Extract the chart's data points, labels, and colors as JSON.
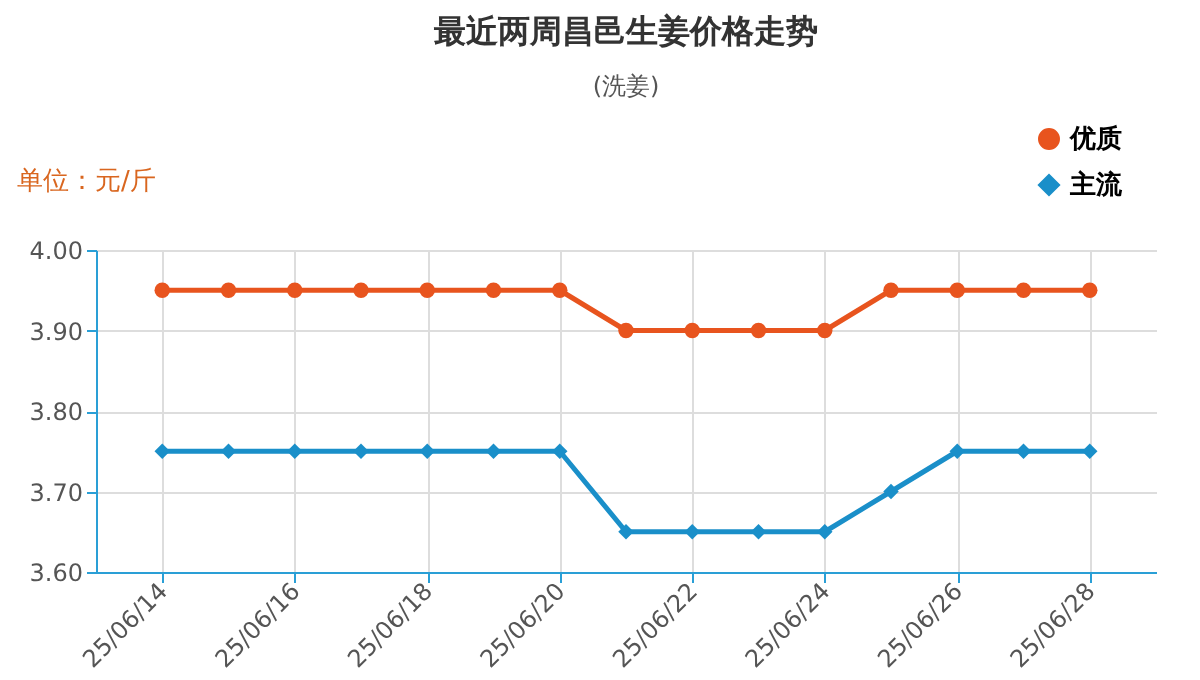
{
  "chart_data": {
    "type": "line",
    "title": "最近两周昌邑生姜价格走势",
    "subtitle": "(洗姜)",
    "ylabel": "单位：元/斤",
    "categories": [
      "25/06/14",
      null,
      "25/06/16",
      null,
      "25/06/18",
      null,
      "25/06/20",
      null,
      "25/06/22",
      null,
      "25/06/24",
      null,
      "25/06/26",
      null,
      "25/06/28"
    ],
    "series": [
      {
        "name": "优质",
        "color": "#e8541e",
        "marker": "circle",
        "values": [
          3.95,
          3.95,
          3.95,
          3.95,
          3.95,
          3.95,
          3.95,
          3.9,
          3.9,
          3.9,
          3.9,
          3.95,
          3.95,
          3.95,
          3.95
        ]
      },
      {
        "name": "主流",
        "color": "#1a8fc9",
        "marker": "diamond",
        "values": [
          3.75,
          3.75,
          3.75,
          3.75,
          3.75,
          3.75,
          3.75,
          3.65,
          3.65,
          3.65,
          3.65,
          3.7,
          3.75,
          3.75,
          3.75
        ]
      }
    ],
    "ylim": [
      3.6,
      4.0
    ],
    "yticks": [
      {
        "value": 3.6,
        "label": "3.60"
      },
      {
        "value": 3.7,
        "label": "3.70"
      },
      {
        "value": 3.8,
        "label": "3.80"
      },
      {
        "value": 3.9,
        "label": "3.90"
      },
      {
        "value": 4.0,
        "label": "4.00"
      }
    ],
    "grid": true,
    "legend": "top right"
  }
}
